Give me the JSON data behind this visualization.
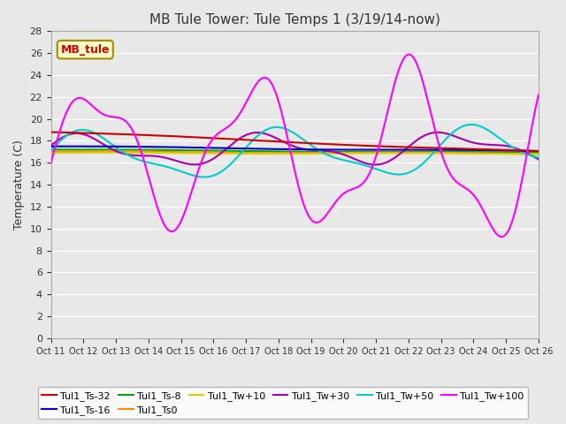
{
  "title": "MB Tule Tower: Tule Temps 1 (3/19/14-now)",
  "ylabel": "Temperature (C)",
  "background_color": "#e8e8e8",
  "ylim": [
    0,
    28
  ],
  "yticks": [
    0,
    2,
    4,
    6,
    8,
    10,
    12,
    14,
    16,
    18,
    20,
    22,
    24,
    26,
    28
  ],
  "xtick_labels": [
    "Oct 11",
    "Oct 12",
    "Oct 13",
    "Oct 14",
    "Oct 15",
    "Oct 16",
    "Oct 17",
    "Oct 18",
    "Oct 19",
    "Oct 20",
    "Oct 21",
    "Oct 22",
    "Oct 23",
    "Oct 24",
    "Oct 25",
    "Oct 26"
  ],
  "series": {
    "Tul1_Ts-32": {
      "color": "#cc0000",
      "lw": 1.5
    },
    "Tul1_Ts-16": {
      "color": "#0000cc",
      "lw": 1.5
    },
    "Tul1_Ts-8": {
      "color": "#00aa00",
      "lw": 1.5
    },
    "Tul1_Ts0": {
      "color": "#ff8800",
      "lw": 1.5
    },
    "Tul1_Tw+10": {
      "color": "#ddcc00",
      "lw": 1.5
    },
    "Tul1_Tw+30": {
      "color": "#aa00aa",
      "lw": 1.5
    },
    "Tul1_Tw+50": {
      "color": "#00cccc",
      "lw": 1.5
    },
    "Tul1_Tw+100": {
      "color": "#ff00ff",
      "lw": 1.5
    }
  },
  "legend_label": "MB_tule",
  "legend_bg": "#ffffcc",
  "legend_edge": "#aa8800"
}
